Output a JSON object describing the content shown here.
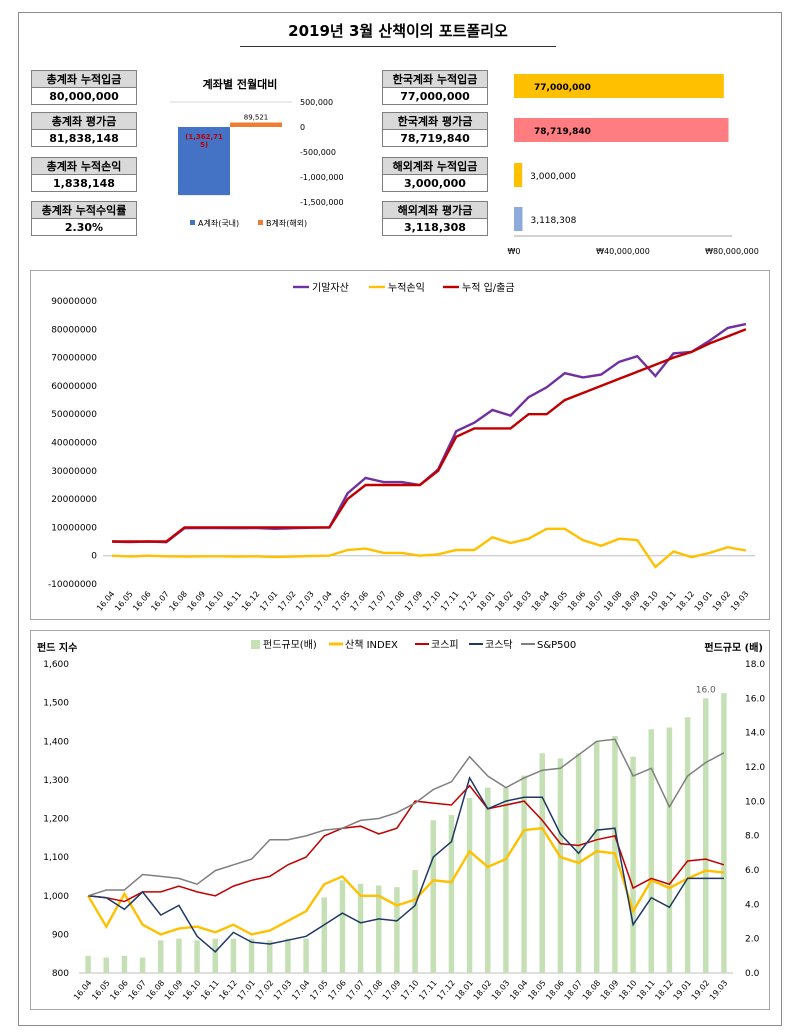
{
  "title": "2019년 3월 산책이의 포트폴리오",
  "kpis_left": [
    {
      "label": "총계좌 누적입금",
      "value": "80,000,000"
    },
    {
      "label": "총계좌 평가금",
      "value": "81,838,148"
    },
    {
      "label": "총계좌 누적손익",
      "value": "1,838,148"
    },
    {
      "label": "총계좌 누적수익률",
      "value": "2.30%"
    }
  ],
  "kpis_right": [
    {
      "label": "한국계좌 누적입금",
      "value": "77,000,000"
    },
    {
      "label": "한국계좌 평가금",
      "value": "78,719,840"
    },
    {
      "label": "해외계좌 누적입금",
      "value": "3,000,000"
    },
    {
      "label": "해외계좌 평가금",
      "value": "3,118,308"
    }
  ],
  "colors": {
    "a_bar": "#4472c4",
    "b_bar": "#ed7d31",
    "hbar_gold": "#ffc000",
    "hbar_red": "#ff7c80",
    "hbar_blue": "#8eaadb",
    "purple": "#7030a0",
    "gold": "#ffc000",
    "dark_red": "#c00000",
    "green": "#c5e0b4",
    "red": "#c00000",
    "navy": "#1f3864",
    "gray": "#7f7f7f"
  },
  "chart_data": [
    {
      "type": "bar",
      "title": "계좌별 전월대비",
      "categories": [
        "A계좌(국내)",
        "B계좌(해외)"
      ],
      "values": [
        -1362715,
        89521
      ],
      "data_labels": [
        "(1,362,71\n5)",
        "89,521"
      ],
      "legend": [
        "A계좌(국내)",
        "B계좌(해외)"
      ],
      "y_ticks": [
        "500,000",
        "0",
        "-500,000",
        "-1,000,000",
        "-1,500,000"
      ],
      "ylim": [
        -1500000,
        500000
      ]
    },
    {
      "type": "bar",
      "orientation": "horizontal",
      "categories": [
        "한국계좌 누적입금",
        "한국계좌 평가금",
        "해외계좌 누적입금",
        "해외계좌 평가금"
      ],
      "values": [
        77000000,
        78719840,
        3000000,
        3118308
      ],
      "data_labels": [
        "77,000,000",
        "78,719,840",
        "3,000,000",
        "3,118,308"
      ],
      "x_ticks": [
        "₩0",
        "₩40,000,000",
        "₩80,000,000"
      ],
      "xlim": [
        0,
        80000000
      ]
    },
    {
      "type": "line",
      "legend": [
        "기말자산",
        "누적손익",
        "누적 입/출금"
      ],
      "x": [
        "16.04",
        "16.05",
        "16.06",
        "16.07",
        "16.08",
        "16.09",
        "16.10",
        "16.11",
        "16.12",
        "17.01",
        "17.02",
        "17.03",
        "17.04",
        "17.05",
        "17.06",
        "17.07",
        "17.08",
        "17.09",
        "17.10",
        "17.11",
        "17.12",
        "18.01",
        "18.02",
        "18.03",
        "18.04",
        "18.05",
        "18.06",
        "18.07",
        "18.08",
        "18.09",
        "18.10",
        "18.11",
        "18.12",
        "19.01",
        "19.02",
        "19.03"
      ],
      "y_ticks": [
        "90000000",
        "80000000",
        "70000000",
        "60000000",
        "50000000",
        "40000000",
        "30000000",
        "20000000",
        "10000000",
        "0",
        "-10000000"
      ],
      "ylim": [
        -10000000,
        90000000
      ],
      "series": [
        {
          "name": "기말자산",
          "values": [
            5000000,
            4800000,
            5000000,
            4800000,
            9700000,
            9800000,
            9800000,
            9700000,
            9800000,
            9500000,
            9700000,
            9900000,
            10000000,
            22000000,
            27500000,
            26000000,
            26000000,
            25000000,
            30500000,
            44000000,
            47000000,
            51500000,
            49500000,
            56000000,
            59500000,
            64500000,
            63000000,
            64000000,
            68500000,
            70500000,
            63500000,
            71500000,
            72000000,
            76000000,
            80500000,
            81838148
          ]
        },
        {
          "name": "누적손익",
          "values": [
            0,
            -300000,
            0,
            -200000,
            -300000,
            -200000,
            -200000,
            -300000,
            -200000,
            -500000,
            -300000,
            -100000,
            0,
            2000000,
            2500000,
            1000000,
            1000000,
            0,
            500000,
            2000000,
            2000000,
            6500000,
            4500000,
            6000000,
            9500000,
            9500000,
            5500000,
            3500000,
            6000000,
            5500000,
            -4000000,
            1500000,
            -500000,
            1000000,
            3000000,
            1838148
          ]
        },
        {
          "name": "누적 입/출금",
          "values": [
            5000000,
            5000000,
            5000000,
            5000000,
            10000000,
            10000000,
            10000000,
            10000000,
            10000000,
            10000000,
            10000000,
            10000000,
            10000000,
            20000000,
            25000000,
            25000000,
            25000000,
            25000000,
            30000000,
            42000000,
            45000000,
            45000000,
            45000000,
            50000000,
            50000000,
            55000000,
            57500000,
            60000000,
            62500000,
            65000000,
            67500000,
            70000000,
            72000000,
            75000000,
            77500000,
            80000000
          ]
        }
      ]
    },
    {
      "type": "bar+line",
      "ylabel_left": "펀드 지수",
      "ylabel_right": "펀드규모 (배)",
      "legend": [
        "펀드규모(배)",
        "산책 INDEX",
        "코스피",
        "코스닥",
        "S&P500"
      ],
      "x": [
        "16.04",
        "16.05",
        "16.06",
        "16.07",
        "16.08",
        "16.09",
        "16.10",
        "16.11",
        "16.12",
        "17.01",
        "17.02",
        "17.03",
        "17.04",
        "17.05",
        "17.06",
        "17.07",
        "17.08",
        "17.09",
        "17.10",
        "17.11",
        "17.12",
        "18.01",
        "18.02",
        "18.03",
        "18.04",
        "18.05",
        "18.06",
        "18.07",
        "18.08",
        "18.09",
        "18.10",
        "18.11",
        "18.12",
        "19.01",
        "19.02",
        "19.03"
      ],
      "y_left_ticks": [
        "1,600",
        "1,500",
        "1,400",
        "1,300",
        "1,200",
        "1,100",
        "1,000",
        "900",
        "800"
      ],
      "y_right_ticks": [
        "18.0",
        "16.0",
        "14.0",
        "12.0",
        "10.0",
        "8.0",
        "6.0",
        "4.0",
        "2.0",
        "0.0"
      ],
      "ylim_left": [
        800,
        1600
      ],
      "ylim_right": [
        0,
        18
      ],
      "bar_label": "16.0",
      "bars": [
        1.0,
        0.9,
        1.0,
        0.9,
        1.9,
        2.0,
        1.9,
        2.0,
        2.0,
        2.0,
        1.9,
        2.0,
        2.0,
        4.4,
        5.4,
        5.2,
        5.1,
        5.0,
        6.0,
        8.9,
        9.2,
        10.2,
        10.8,
        10.8,
        11.5,
        12.8,
        12.5,
        12.8,
        13.5,
        13.8,
        12.6,
        14.2,
        14.3,
        14.9,
        16.0,
        16.3
      ],
      "series": [
        {
          "name": "산책 INDEX",
          "values": [
            1000,
            920,
            1005,
            925,
            900,
            915,
            920,
            905,
            925,
            900,
            910,
            935,
            960,
            1030,
            1050,
            1000,
            1000,
            975,
            990,
            1040,
            1035,
            1115,
            1075,
            1095,
            1170,
            1175,
            1100,
            1085,
            1115,
            1110,
            960,
            1040,
            1020,
            1045,
            1065,
            1060
          ]
        },
        {
          "name": "코스피",
          "values": [
            1000,
            995,
            985,
            1010,
            1010,
            1025,
            1010,
            1000,
            1025,
            1040,
            1050,
            1080,
            1100,
            1155,
            1175,
            1180,
            1160,
            1175,
            1245,
            1240,
            1235,
            1285,
            1225,
            1235,
            1245,
            1195,
            1135,
            1130,
            1145,
            1155,
            1020,
            1045,
            1030,
            1090,
            1095,
            1080
          ]
        },
        {
          "name": "코스닥",
          "values": [
            1000,
            995,
            965,
            1010,
            950,
            975,
            895,
            855,
            905,
            880,
            875,
            885,
            895,
            925,
            955,
            930,
            940,
            935,
            975,
            1100,
            1140,
            1305,
            1225,
            1245,
            1255,
            1255,
            1160,
            1110,
            1170,
            1175,
            925,
            995,
            970,
            1045,
            1045,
            1045
          ]
        },
        {
          "name": "S&P500",
          "values": [
            1000,
            1015,
            1015,
            1055,
            1050,
            1045,
            1030,
            1065,
            1080,
            1095,
            1145,
            1145,
            1155,
            1170,
            1175,
            1195,
            1200,
            1215,
            1240,
            1275,
            1295,
            1360,
            1310,
            1280,
            1305,
            1325,
            1330,
            1365,
            1400,
            1405,
            1310,
            1330,
            1230,
            1310,
            1345,
            1370
          ]
        }
      ]
    }
  ]
}
